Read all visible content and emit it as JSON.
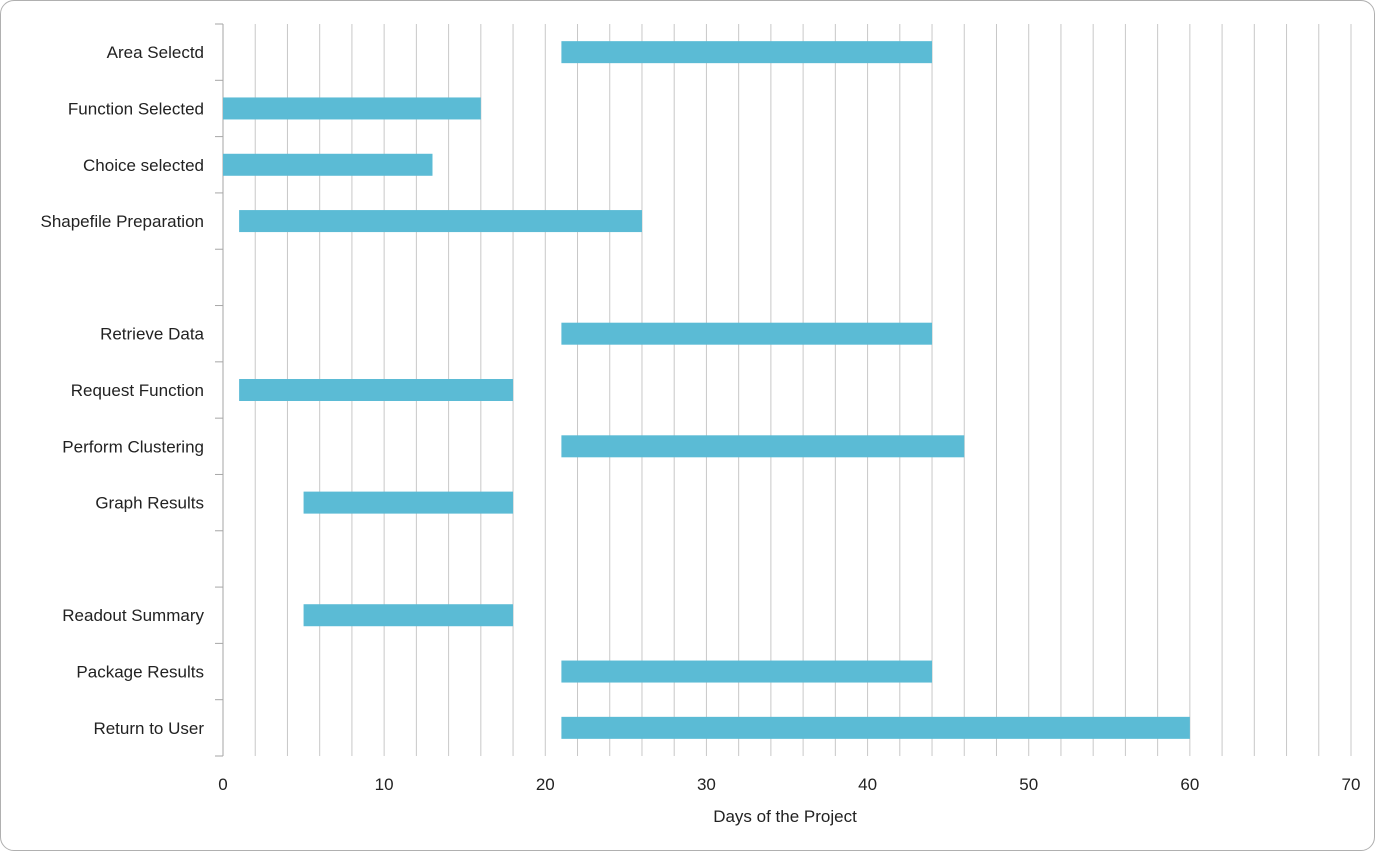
{
  "chart_data": {
    "type": "bar",
    "orientation": "horizontal",
    "stacked": true,
    "xlabel": "Days of the Project",
    "ylabel": "",
    "xlim": [
      0,
      70
    ],
    "xticks": [
      0,
      10,
      20,
      30,
      40,
      50,
      60,
      70
    ],
    "grid": "vertical minor lines every 2 days",
    "legend": "none",
    "bar_color": "#5bbbd5",
    "categories": [
      "Area Selectd",
      "Function Selected",
      "Choice selected",
      "Shapefile Preparation",
      "",
      "Retrieve Data",
      "Request Function",
      "Perform Clustering",
      "Graph Results",
      "",
      "Readout Summary",
      "Package Results",
      "Return to User"
    ],
    "series": [
      {
        "role": "start (hidden)",
        "values": [
          21,
          0,
          0,
          1,
          null,
          21,
          1,
          21,
          5,
          null,
          5,
          21,
          21
        ]
      },
      {
        "role": "duration",
        "values": [
          23,
          16,
          13,
          25,
          null,
          23,
          17,
          25,
          13,
          null,
          13,
          23,
          39
        ]
      }
    ]
  }
}
